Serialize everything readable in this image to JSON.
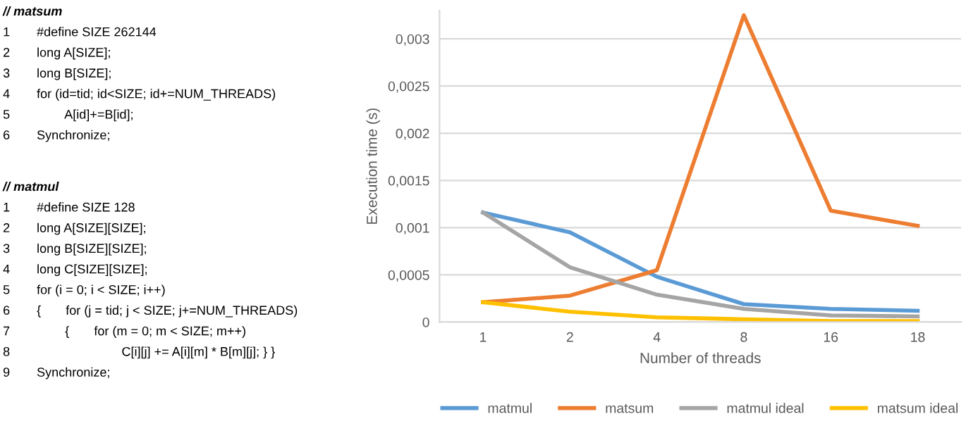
{
  "chart_data": {
    "type": "line",
    "xlabel": "Number of threads",
    "ylabel": "Execution time (s)",
    "categories": [
      "1",
      "2",
      "4",
      "8",
      "16",
      "18"
    ],
    "series": [
      {
        "name": "matmul",
        "color": "#5b9bd5",
        "values": [
          0.00116,
          0.00095,
          0.00048,
          0.00019,
          0.00014,
          0.00012
        ]
      },
      {
        "name": "matsum",
        "color": "#ed7d31",
        "values": [
          0.00021,
          0.00028,
          0.00055,
          0.00325,
          0.00118,
          0.00102
        ]
      },
      {
        "name": "matmul ideal",
        "color": "#a5a5a5",
        "values": [
          0.00116,
          0.00058,
          0.00029,
          0.00014,
          7e-05,
          6e-05
        ]
      },
      {
        "name": "matsum ideal",
        "color": "#ffc000",
        "values": [
          0.00021,
          0.00011,
          5e-05,
          3e-05,
          1e-05,
          1e-05
        ]
      }
    ],
    "ylim": [
      0,
      0.0033
    ],
    "yticks": [
      0,
      {
        "value": 0.0005,
        "label": "0,0005"
      },
      {
        "value": 0.001,
        "label": "0,001"
      },
      {
        "value": 0.0015,
        "label": "0,0015"
      },
      {
        "value": 0.002,
        "label": "0,002"
      },
      {
        "value": 0.0025,
        "label": "0,0025"
      },
      {
        "value": 0.003,
        "label": "0,003"
      }
    ],
    "grid": "y",
    "legend": "bottom",
    "marker": "none",
    "line_style": "solid",
    "annotations": [
      "// matsum",
      "1 #define SIZE 262144",
      "2 long A[SIZE];",
      "3 long B[SIZE];",
      "4 for (id=tid; id<SIZE; id+=NUM_THREADS)",
      "5         A[id]+=B[id];",
      "6 Synchronize;",
      "// matmul",
      "1 #define SIZE 128",
      "2 long A[SIZE][SIZE];",
      "3 long B[SIZE][SIZE];",
      "4 long C[SIZE][SIZE];",
      "5 for (i = 0; i < SIZE; i++)",
      "6 {       for (j = tid; j < SIZE; j+=NUM_THREADS)",
      "7         {       for (m = 0; m < SIZE; m++)",
      "8                         C[i][j] += A[i][m] * B[m][j]; } }",
      "9 Synchronize;"
    ]
  }
}
